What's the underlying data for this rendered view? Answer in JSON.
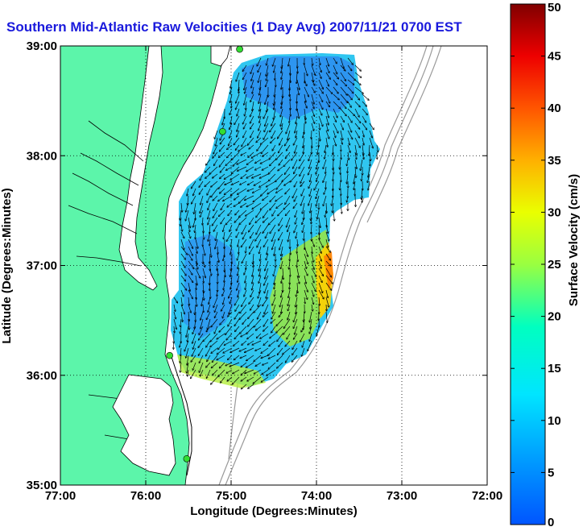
{
  "title": "Southern Mid-Atlantic Raw Velocities (1 Day Avg) 2007/11/21 0700 EST",
  "colors": {
    "land": "#5cf5aa",
    "title": "#1a1adc",
    "bathymetry": "#999999",
    "coastline": "#000000",
    "site_marker": "#33dd33"
  },
  "map": {
    "xlabel": "Longitude (Degrees:Minutes)",
    "ylabel": "Latitude (Degrees:Minutes)",
    "lon_range": [
      -77,
      -72
    ],
    "lat_range": [
      35,
      39
    ],
    "x_ticks": [
      {
        "value": -77,
        "label": "77:00"
      },
      {
        "value": -76,
        "label": "76:00"
      },
      {
        "value": -75,
        "label": "75:00"
      },
      {
        "value": -74,
        "label": "74:00"
      },
      {
        "value": -73,
        "label": "73:00"
      },
      {
        "value": -72,
        "label": "72:00"
      }
    ],
    "y_ticks": [
      {
        "value": 35,
        "label": "35:00"
      },
      {
        "value": 36,
        "label": "36:00"
      },
      {
        "value": 37,
        "label": "37:00"
      },
      {
        "value": 38,
        "label": "38:00"
      },
      {
        "value": 39,
        "label": "39:00"
      }
    ],
    "grid": "dotted",
    "sites": [
      {
        "lon": -74.9,
        "lat": 38.97
      },
      {
        "lon": -75.1,
        "lat": 38.22
      },
      {
        "lon": -75.72,
        "lat": 36.18
      },
      {
        "lon": -75.52,
        "lat": 35.24
      }
    ]
  },
  "colorbar": {
    "label": "Surface Velocity (cm/s)",
    "range": [
      0,
      50
    ],
    "ticks": [
      {
        "value": 0,
        "label": "0"
      },
      {
        "value": 5,
        "label": "5"
      },
      {
        "value": 10,
        "label": "10"
      },
      {
        "value": 15,
        "label": "15"
      },
      {
        "value": 20,
        "label": "20"
      },
      {
        "value": 25,
        "label": "25"
      },
      {
        "value": 30,
        "label": "30"
      },
      {
        "value": 35,
        "label": "35"
      },
      {
        "value": 40,
        "label": "40"
      },
      {
        "value": 45,
        "label": "45"
      },
      {
        "value": 50,
        "label": "50"
      }
    ]
  }
}
